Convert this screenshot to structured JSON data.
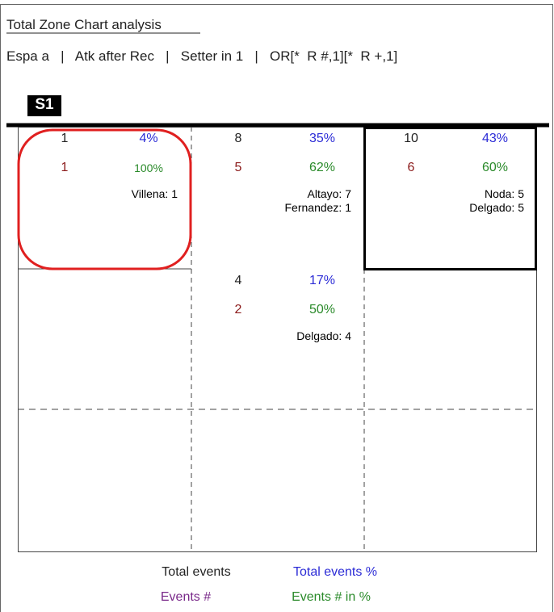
{
  "header": {
    "title": "Total Zone Chart analysis",
    "filter": "Espa a   |   Atk after Rec   |   Setter in 1   |   OR[*  R #,1][*  R +,1]"
  },
  "badge": "S1",
  "zones": [
    {
      "zone": "1",
      "total_pct": "4%",
      "events": "1",
      "events_pct": "100%",
      "players": [
        "Villena: 1"
      ]
    },
    {
      "zone": "8",
      "total_pct": "35%",
      "events": "5",
      "events_pct": "62%",
      "players": [
        "Altayo: 7",
        "Fernandez: 1"
      ]
    },
    {
      "zone": "10",
      "total_pct": "43%",
      "events": "6",
      "events_pct": "60%",
      "players": [
        "Noda: 5",
        "Delgado: 5"
      ]
    },
    {
      "zone": "4",
      "total_pct": "17%",
      "events": "2",
      "events_pct": "50%",
      "players": [
        "Delgado: 4"
      ]
    }
  ],
  "legend": {
    "total_events": "Total events",
    "total_events_pct": "Total events %",
    "events": "Events #",
    "events_pct": "Events # in %"
  }
}
